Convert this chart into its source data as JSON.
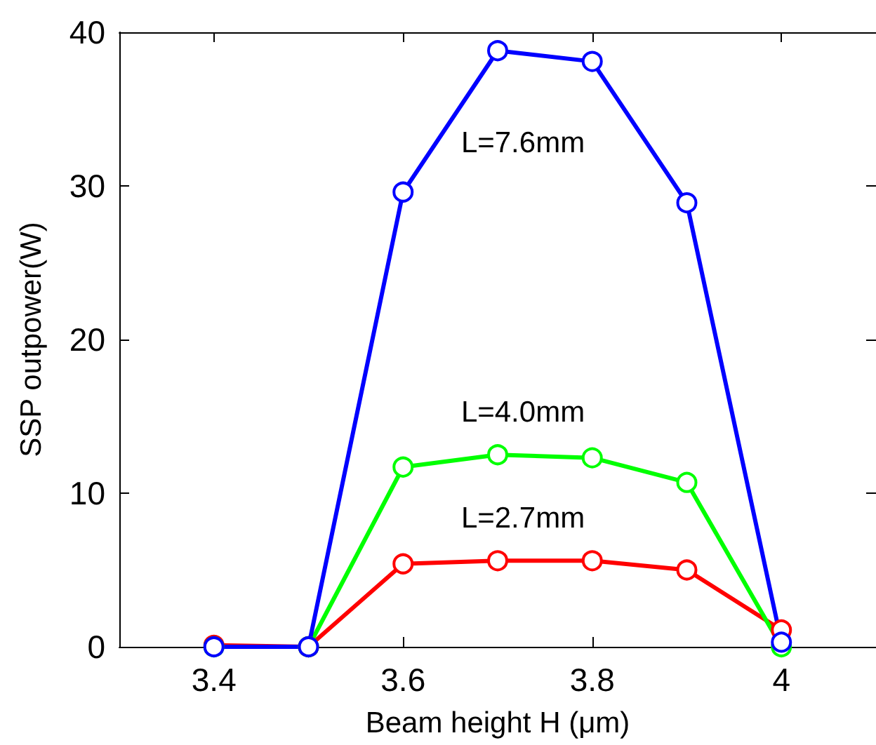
{
  "chart_data": {
    "type": "line",
    "xlabel": "Beam height H (μm)",
    "ylabel": "SSP outpower(W)",
    "x": [
      3.4,
      3.5,
      3.6,
      3.7,
      3.8,
      3.9,
      4.0
    ],
    "series": [
      {
        "name": "L=2.7mm",
        "color": "#ff0000",
        "values": [
          0.1,
          0,
          5.4,
          5.6,
          5.6,
          5.0,
          1.1
        ]
      },
      {
        "name": "L=4.0mm",
        "color": "#00ff00",
        "values": [
          0,
          0,
          11.7,
          12.5,
          12.3,
          10.7,
          0
        ]
      },
      {
        "name": "L=7.6mm",
        "color": "#0000ff",
        "values": [
          0,
          0,
          29.6,
          38.8,
          38.1,
          28.9,
          0.3
        ]
      }
    ],
    "xlim": [
      3.3,
      4.1
    ],
    "xticks": [
      3.4,
      3.6,
      3.8,
      4
    ],
    "ylim": [
      0,
      40
    ],
    "yticks": [
      0,
      10,
      20,
      30,
      40
    ],
    "grid": false,
    "marker": "circle",
    "line_style": "solid"
  }
}
